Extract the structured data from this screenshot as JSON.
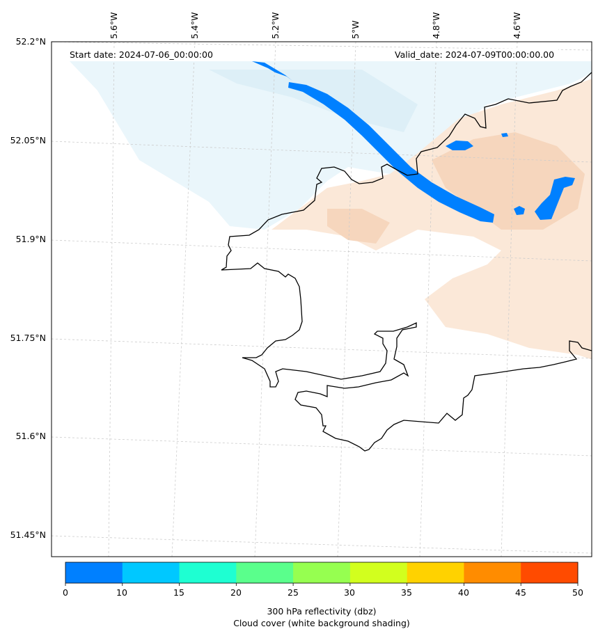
{
  "map": {
    "lat_labels": [
      "52.2°N",
      "52.05°N",
      "51.9°N",
      "51.75°N",
      "51.6°N",
      "51.45°N"
    ],
    "lon_labels": [
      "5.6°W",
      "5.4°W",
      "5.2°W",
      "5°W",
      "4.8°W",
      "4.6°W"
    ],
    "start_date": "Start date: 2024-07-06_00:00:00",
    "valid_date": "Valid_date: 2024-07-09T00:00:00.00",
    "grid": true,
    "coastline_color": "#000000",
    "reflectivity_band_color": "#0080ff",
    "cloud_shading_colors": [
      "#eaf6fb",
      "#fbe8d8",
      "#f6d6bd"
    ]
  },
  "colorbar": {
    "ticks": [
      "0",
      "10",
      "15",
      "20",
      "25",
      "30",
      "35",
      "40",
      "45",
      "50"
    ],
    "colors": [
      "#0080ff",
      "#00c8ff",
      "#1effd2",
      "#5aff8c",
      "#96ff50",
      "#d2ff1e",
      "#ffd200",
      "#ff8c00",
      "#ff4b00"
    ],
    "title_line1": "300 hPa reflectivity (dbz)",
    "title_line2": "Cloud cover (white background shading)"
  }
}
